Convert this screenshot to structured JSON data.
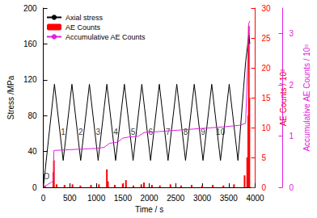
{
  "chart_data": {
    "type": "line",
    "xlabel": "Time / s",
    "ylabel": "Stress /MPa",
    "y2label": "AE Counts / 10³",
    "y3label": "Accumulative AE Counts / 10⁵",
    "xlim": [
      0,
      4000
    ],
    "xticks": [
      0,
      500,
      1000,
      1500,
      2000,
      2500,
      3000,
      3500,
      4000
    ],
    "ylim": [
      0,
      200
    ],
    "yticks": [
      0,
      40,
      80,
      120,
      160,
      200
    ],
    "y2lim": [
      0,
      30
    ],
    "y2ticks": [
      0,
      5,
      10,
      15,
      20,
      25,
      30
    ],
    "y3lim": [
      0,
      3.5
    ],
    "y3ticks": [
      0,
      1,
      2,
      3
    ],
    "grid": false,
    "legend": "upper left",
    "series": [
      {
        "name": "Axial stress",
        "type": "line",
        "color": "#000000",
        "axis": "y",
        "x": [
          0,
          210,
          375,
          540,
          705,
          870,
          1035,
          1200,
          1365,
          1530,
          1695,
          1860,
          2025,
          2190,
          2355,
          2520,
          2685,
          2850,
          3015,
          3180,
          3345,
          3510,
          3675,
          3820,
          3880,
          3900
        ],
        "values": [
          0,
          115,
          30,
          115,
          30,
          115,
          30,
          115,
          30,
          115,
          30,
          115,
          30,
          115,
          30,
          115,
          30,
          115,
          30,
          115,
          30,
          115,
          30,
          140,
          170,
          160
        ]
      },
      {
        "name": "AE Counts",
        "type": "bar",
        "color": "#ff0000",
        "axis": "y2",
        "x": [
          30,
          190,
          200,
          250,
          400,
          550,
          700,
          900,
          1050,
          1200,
          1220,
          1350,
          1500,
          1560,
          1700,
          1850,
          1900,
          2050,
          2200,
          2400,
          2600,
          2800,
          3000,
          3200,
          3400,
          3600,
          3800,
          3850,
          3870,
          3880,
          3890
        ],
        "values": [
          0.3,
          2.5,
          4.5,
          0.5,
          0.4,
          0.5,
          0.3,
          0.4,
          0.5,
          3.0,
          1.0,
          0.4,
          0.6,
          1.2,
          0.3,
          0.5,
          0.8,
          0.4,
          0.3,
          0.5,
          0.3,
          0.4,
          0.3,
          0.4,
          0.3,
          0.5,
          2.0,
          5,
          12,
          27,
          15
        ]
      },
      {
        "name": "Accumulative AE Counts",
        "type": "line",
        "color": "#e020e0",
        "axis": "y3",
        "x": [
          0,
          150,
          190,
          200,
          600,
          1000,
          1150,
          1250,
          1400,
          1500,
          1600,
          1800,
          1900,
          2200,
          2600,
          3000,
          3400,
          3700,
          3820,
          3860,
          3880,
          3900
        ],
        "values": [
          0,
          0.1,
          0.12,
          0.72,
          0.74,
          0.76,
          0.78,
          0.86,
          0.88,
          0.96,
          0.98,
          1.0,
          1.07,
          1.09,
          1.12,
          1.15,
          1.18,
          1.21,
          1.25,
          2.5,
          3.2,
          3.25
        ]
      }
    ],
    "annotations": [
      {
        "text": "O",
        "x": 60,
        "y": 12
      },
      {
        "text": "1",
        "x": 375,
        "y": 62
      },
      {
        "text": "2",
        "x": 705,
        "y": 62
      },
      {
        "text": "3",
        "x": 1035,
        "y": 62
      },
      {
        "text": "4",
        "x": 1365,
        "y": 62
      },
      {
        "text": "5",
        "x": 1695,
        "y": 62
      },
      {
        "text": "6",
        "x": 2025,
        "y": 62
      },
      {
        "text": "7",
        "x": 2355,
        "y": 62
      },
      {
        "text": "8",
        "x": 2685,
        "y": 62
      },
      {
        "text": "9",
        "x": 3015,
        "y": 62
      },
      {
        "text": "10",
        "x": 3345,
        "y": 62
      }
    ]
  }
}
